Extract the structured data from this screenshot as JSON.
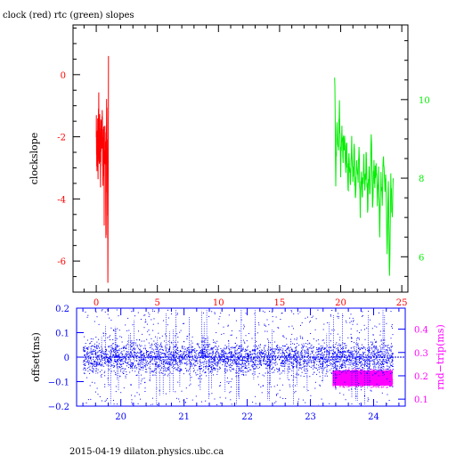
{
  "colors": {
    "frame": "#000000",
    "clock": "#ff0000",
    "rtc": "#00ee00",
    "offset": "#0000ff",
    "rtt": "#ff00ff"
  },
  "footer": "2015-04-19  dilaton.physics.ubc.ca",
  "chart_data": [
    {
      "type": "line",
      "title": "clock (red) rtc (green) slopes",
      "xlabel": "",
      "ylabel": "clockslope",
      "xlim": [
        -1.9,
        25.5
      ],
      "ylim": [
        -7.0,
        1.6
      ],
      "xticks": [
        0,
        5,
        10,
        15,
        20,
        25
      ],
      "yticks_left": [
        0,
        -2,
        -4,
        -6
      ],
      "y2lim": [
        5.1,
        11.9
      ],
      "yticks_right": [
        10,
        8,
        6
      ],
      "series": [
        {
          "color": "#ff0000",
          "axis": "left",
          "x_range": [
            0.0,
            1.0
          ],
          "y_range": [
            -6.7,
            0.6
          ],
          "typical": -2.1,
          "points": [
            [
              0.0,
              -1.6
            ],
            [
              0.05,
              -2.9
            ],
            [
              0.1,
              -1.4
            ],
            [
              0.15,
              -3.3
            ],
            [
              0.2,
              -0.7
            ],
            [
              0.25,
              -2.6
            ],
            [
              0.3,
              -1.2
            ],
            [
              0.35,
              -3.0
            ],
            [
              0.4,
              -1.5
            ],
            [
              0.45,
              -2.4
            ],
            [
              0.5,
              -0.8
            ],
            [
              0.55,
              -3.8
            ],
            [
              0.6,
              -1.6
            ],
            [
              0.65,
              -4.1
            ],
            [
              0.7,
              -1.9
            ],
            [
              0.75,
              -1.8
            ],
            [
              0.8,
              -5.3
            ],
            [
              0.85,
              -0.9
            ],
            [
              0.9,
              -2.6
            ],
            [
              0.95,
              -6.7
            ],
            [
              1.0,
              0.6
            ]
          ]
        },
        {
          "color": "#00ee00",
          "axis": "right",
          "x_range": [
            19.5,
            24.3
          ],
          "y_range": [
            5.3,
            10.7
          ],
          "typical": 8.0,
          "points": [
            [
              19.5,
              10.7
            ],
            [
              19.6,
              8.1
            ],
            [
              19.7,
              9.4
            ],
            [
              19.8,
              8.6
            ],
            [
              19.9,
              9.8
            ],
            [
              20.0,
              8.3
            ],
            [
              20.1,
              9.1
            ],
            [
              20.2,
              8.7
            ],
            [
              20.3,
              9.0
            ],
            [
              20.4,
              8.2
            ],
            [
              20.5,
              8.8
            ],
            [
              20.6,
              7.8
            ],
            [
              20.7,
              8.5
            ],
            [
              20.8,
              7.6
            ],
            [
              20.9,
              9.2
            ],
            [
              21.0,
              7.9
            ],
            [
              21.1,
              8.7
            ],
            [
              21.2,
              7.5
            ],
            [
              21.3,
              8.2
            ],
            [
              21.4,
              7.9
            ],
            [
              21.5,
              8.6
            ],
            [
              21.6,
              7.3
            ],
            [
              21.7,
              8.0
            ],
            [
              21.8,
              7.7
            ],
            [
              21.9,
              8.4
            ],
            [
              22.0,
              7.6
            ],
            [
              22.1,
              8.9
            ],
            [
              22.2,
              7.2
            ],
            [
              22.3,
              8.1
            ],
            [
              22.4,
              7.8
            ],
            [
              22.5,
              9.2
            ],
            [
              22.6,
              7.0
            ],
            [
              22.7,
              8.3
            ],
            [
              22.8,
              7.9
            ],
            [
              22.9,
              8.6
            ],
            [
              23.0,
              7.4
            ],
            [
              23.1,
              8.0
            ],
            [
              23.2,
              6.8
            ],
            [
              23.3,
              8.2
            ],
            [
              23.4,
              7.6
            ],
            [
              23.5,
              8.5
            ],
            [
              23.6,
              7.7
            ],
            [
              23.7,
              8.1
            ],
            [
              23.8,
              6.1
            ],
            [
              23.9,
              7.9
            ],
            [
              24.0,
              5.3
            ],
            [
              24.1,
              8.2
            ],
            [
              24.2,
              7.1
            ],
            [
              24.3,
              8.0
            ]
          ]
        }
      ]
    },
    {
      "type": "scatter",
      "xlabel": "",
      "ylabel": "offset(ms)",
      "y2label": "rnd−trip(ms)",
      "xlim": [
        19.3,
        24.5
      ],
      "ylim": [
        -0.2,
        0.2
      ],
      "xticks": [
        20,
        21,
        22,
        23,
        24
      ],
      "yticks_left": [
        "0.2",
        "0.1",
        "0",
        "−0.1",
        "−0.2"
      ],
      "y2lim": [
        0.07,
        0.49
      ],
      "yticks_right": [
        "0.4",
        "0.3",
        "0.2",
        "0.1"
      ],
      "series": [
        {
          "color": "#0000ff",
          "axis": "left",
          "x_range": [
            19.4,
            24.3
          ],
          "y_center": 0.0,
          "y_spread": 0.02,
          "y_range": [
            -0.2,
            0.2
          ]
        },
        {
          "color": "#ff00ff",
          "axis": "right",
          "x_range": [
            23.35,
            24.3
          ],
          "y_range": [
            0.15,
            0.23
          ]
        }
      ]
    }
  ]
}
